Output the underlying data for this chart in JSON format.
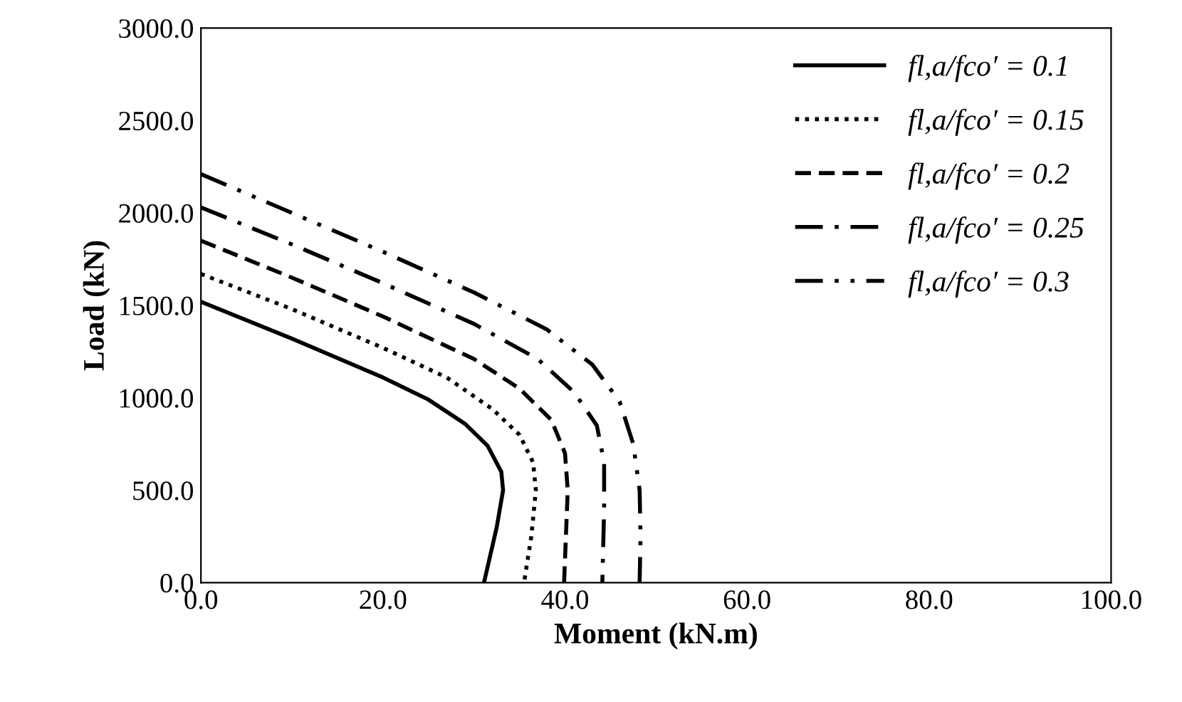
{
  "chart_data": {
    "type": "line",
    "xlabel": "Moment (kN.m)",
    "ylabel": "Load (kN)",
    "xlim": [
      0,
      100
    ],
    "ylim": [
      0,
      3000
    ],
    "xticks": [
      {
        "value": 0,
        "label": "0.0"
      },
      {
        "value": 20,
        "label": "20.0"
      },
      {
        "value": 40,
        "label": "40.0"
      },
      {
        "value": 60,
        "label": "60.0"
      },
      {
        "value": 80,
        "label": "80.0"
      },
      {
        "value": 100,
        "label": "100.0"
      }
    ],
    "yticks": [
      {
        "value": 0,
        "label": "0.0"
      },
      {
        "value": 500,
        "label": "500.0"
      },
      {
        "value": 1000,
        "label": "1000.0"
      },
      {
        "value": 1500,
        "label": "1500.0"
      },
      {
        "value": 2000,
        "label": "2000.0"
      },
      {
        "value": 2500,
        "label": "2500.0"
      },
      {
        "value": 3000,
        "label": "3000.0"
      }
    ],
    "grid": false,
    "legend": "top right",
    "marker": "none",
    "series": [
      {
        "name": "fl,a/fco′ = 0.1",
        "color": "#000000",
        "line_style": "solid",
        "x": [
          0,
          10,
          20,
          25,
          29,
          31.5,
          33,
          33.2,
          32.5,
          31.8,
          31.1
        ],
        "values": [
          1520,
          1320,
          1110,
          990,
          860,
          740,
          600,
          500,
          300,
          150,
          0
        ]
      },
      {
        "name": "fl,a/fco′ = 0.15",
        "color": "#000000",
        "line_style": "dotted",
        "x": [
          0,
          10,
          20,
          27,
          32,
          35,
          36.5,
          36.8,
          36.3,
          35.5
        ],
        "values": [
          1670,
          1480,
          1270,
          1110,
          940,
          800,
          650,
          500,
          250,
          0
        ]
      },
      {
        "name": "fl,a/fco′ = 0.2",
        "color": "#000000",
        "line_style": "dashed",
        "x": [
          0,
          10,
          20,
          30,
          35,
          38.5,
          40,
          40.3,
          40.1,
          39.9
        ],
        "values": [
          1850,
          1650,
          1440,
          1210,
          1050,
          880,
          700,
          500,
          250,
          0
        ]
      },
      {
        "name": "fl,a/fco′ = 0.25",
        "color": "#000000",
        "line_style": "dashdot",
        "x": [
          0,
          10,
          20,
          30,
          37,
          41,
          43.5,
          44.3,
          44.3,
          44.1
        ],
        "values": [
          2030,
          1830,
          1620,
          1400,
          1210,
          1030,
          850,
          650,
          400,
          0
        ]
      },
      {
        "name": "fl,a/fco′ = 0.3",
        "color": "#000000",
        "line_style": "dashdotdot",
        "x": [
          0,
          10,
          20,
          30,
          38,
          43,
          46,
          47.5,
          48.2,
          48.3,
          48.2
        ],
        "values": [
          2210,
          2000,
          1790,
          1570,
          1370,
          1180,
          980,
          750,
          500,
          250,
          0
        ]
      }
    ]
  }
}
